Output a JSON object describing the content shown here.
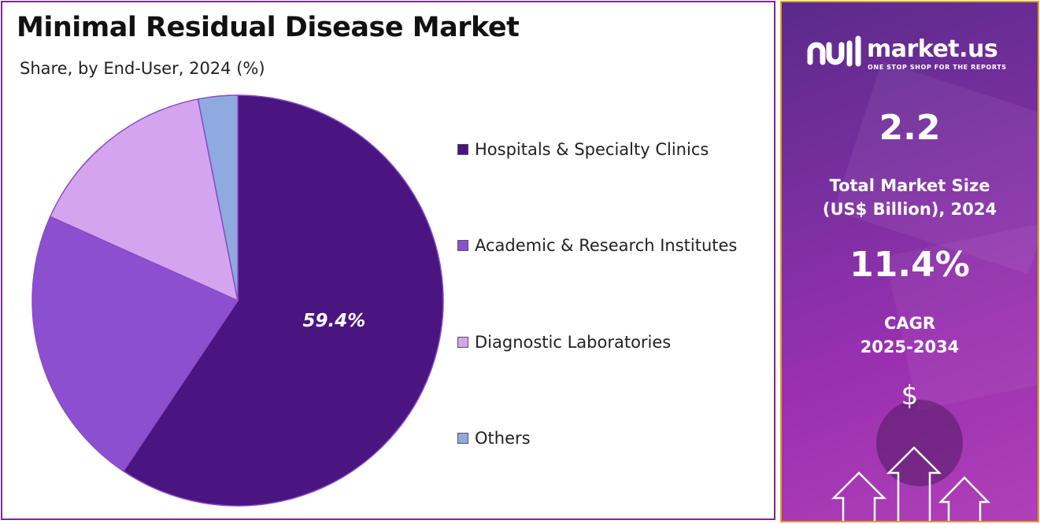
{
  "header": {
    "title": "Minimal Residual Disease Market",
    "subtitle": "Share, by End-User, 2024 (%)"
  },
  "chart_data": {
    "type": "pie",
    "categories": [
      "Hospitals & Specialty Clinics",
      "Academic & Research Institutes",
      "Diagnostic Laboratories",
      "Others"
    ],
    "values": [
      59.4,
      22.3,
      15.2,
      3.1
    ],
    "colors": [
      "#4a1580",
      "#8b4fd0",
      "#d4a5ee",
      "#8eaadf"
    ],
    "data_labels": [
      "59.4%",
      "",
      "",
      ""
    ],
    "legend_position": "right"
  },
  "sidebar": {
    "brand_name": "market.us",
    "brand_tagline": "ONE STOP SHOP FOR THE REPORTS",
    "market_size_value": "2.2",
    "market_size_label_line1": "Total Market Size",
    "market_size_label_line2": "(US$ Billion), 2024",
    "cagr_value": "11.4%",
    "cagr_label_line1": "CAGR",
    "cagr_label_line2": "2025-2034",
    "currency_symbol": "$",
    "icons": [
      "market-us-logo-icon",
      "growth-arrows-icon"
    ]
  }
}
